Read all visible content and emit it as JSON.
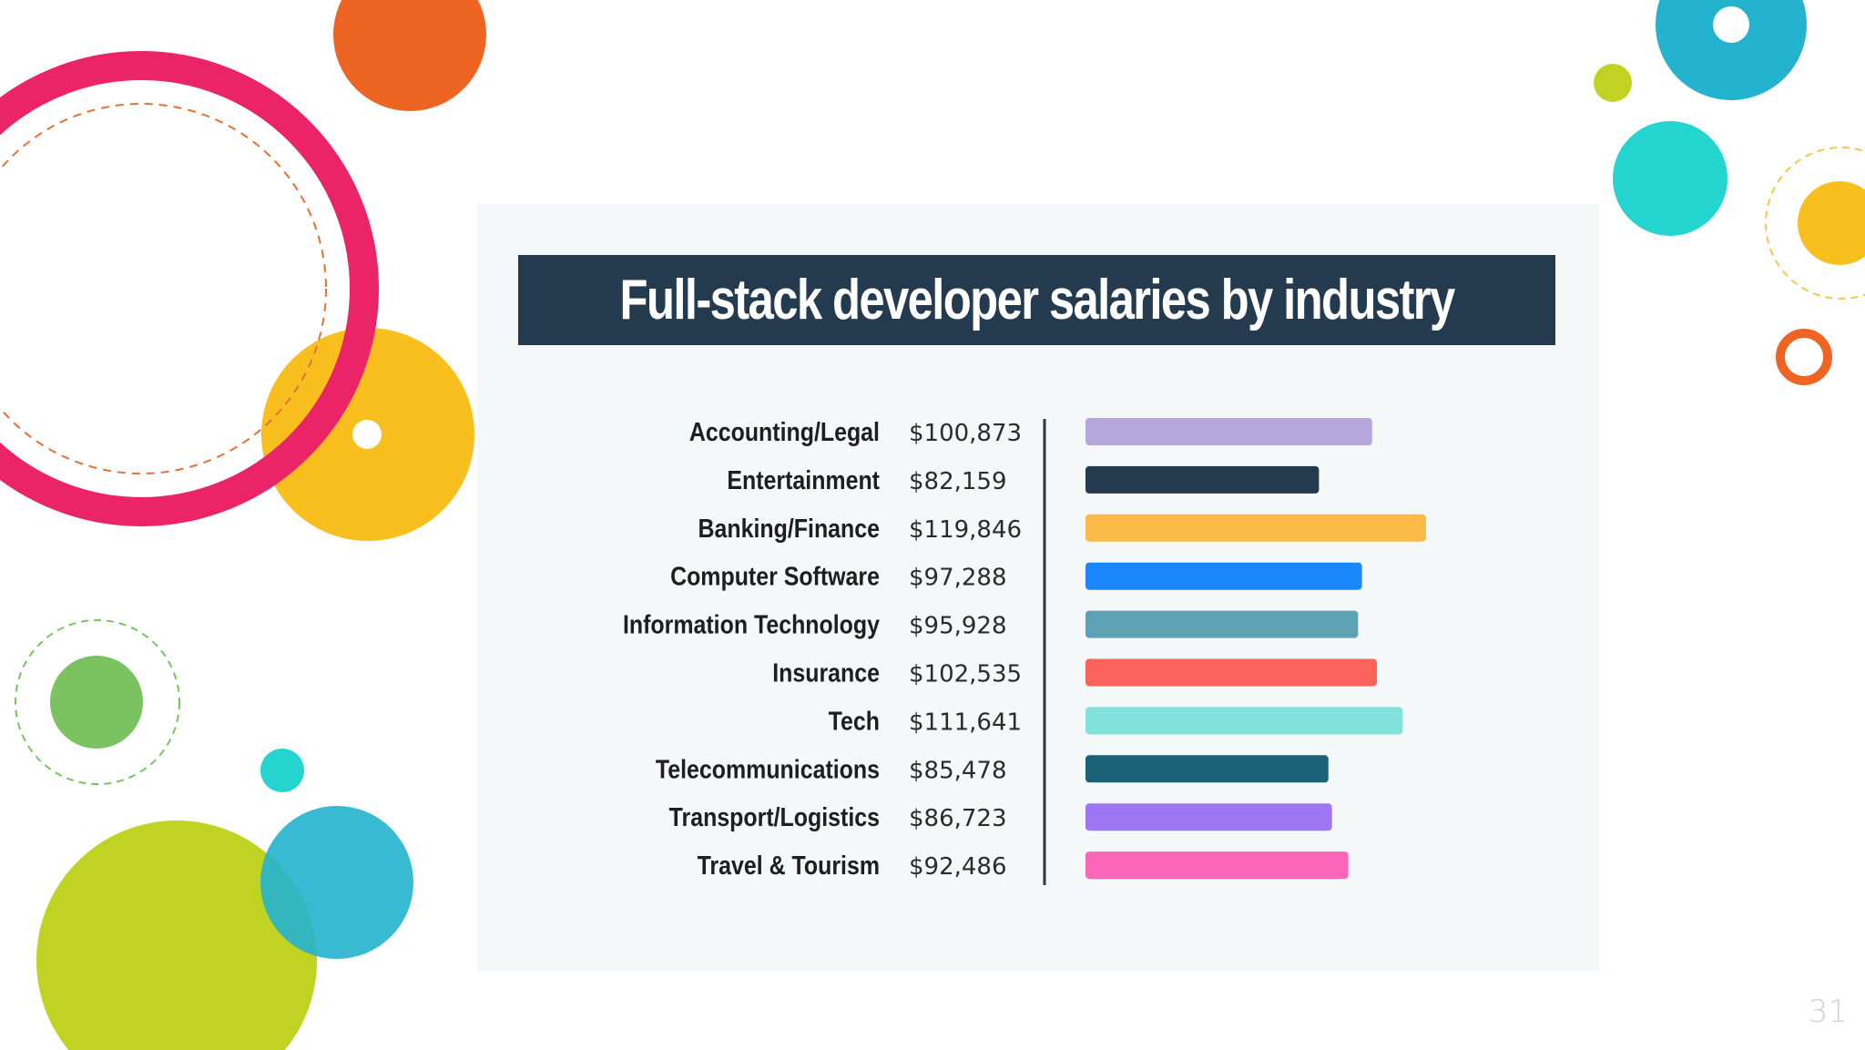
{
  "chart_data": {
    "type": "bar",
    "orientation": "horizontal",
    "title": "Full-stack developer salaries by industry",
    "xlabel": "",
    "ylabel": "",
    "xlim": [
      0,
      119846
    ],
    "categories": [
      "Accounting/Legal",
      "Entertainment",
      "Banking/Finance",
      "Computer Software",
      "Information Technology",
      "Insurance",
      "Tech",
      "Telecommunications",
      "Transport/Logistics",
      "Travel & Tourism"
    ],
    "values": [
      100873,
      82159,
      119846,
      97288,
      95928,
      102535,
      111641,
      85478,
      86723,
      92486
    ],
    "value_labels": [
      "$100,873",
      "$82,159",
      "$119,846",
      "$97,288",
      "$95,928",
      "$102,535",
      "$111,641",
      "$85,478",
      "$86,723",
      "$92,486"
    ],
    "colors": [
      "#b7a6db",
      "#243b4f",
      "#fcba47",
      "#1c86fd",
      "#5ea1b5",
      "#f9635b",
      "#84e2dc",
      "#1b6278",
      "#9d75f5",
      "#fb66b9"
    ]
  },
  "decor": {
    "colors": {
      "pink": "#ea2467",
      "orange": "#ee6523",
      "yellow": "#f9bf1f",
      "lime": "#c1d322",
      "teal": "#23b3ce",
      "turquoise": "#23d4cf",
      "green": "#7bc361",
      "dashed_orange": "#e86f33",
      "dashed_green": "#7bc361",
      "dashed_yellow": "#f9c54a"
    }
  },
  "page_number": "31"
}
